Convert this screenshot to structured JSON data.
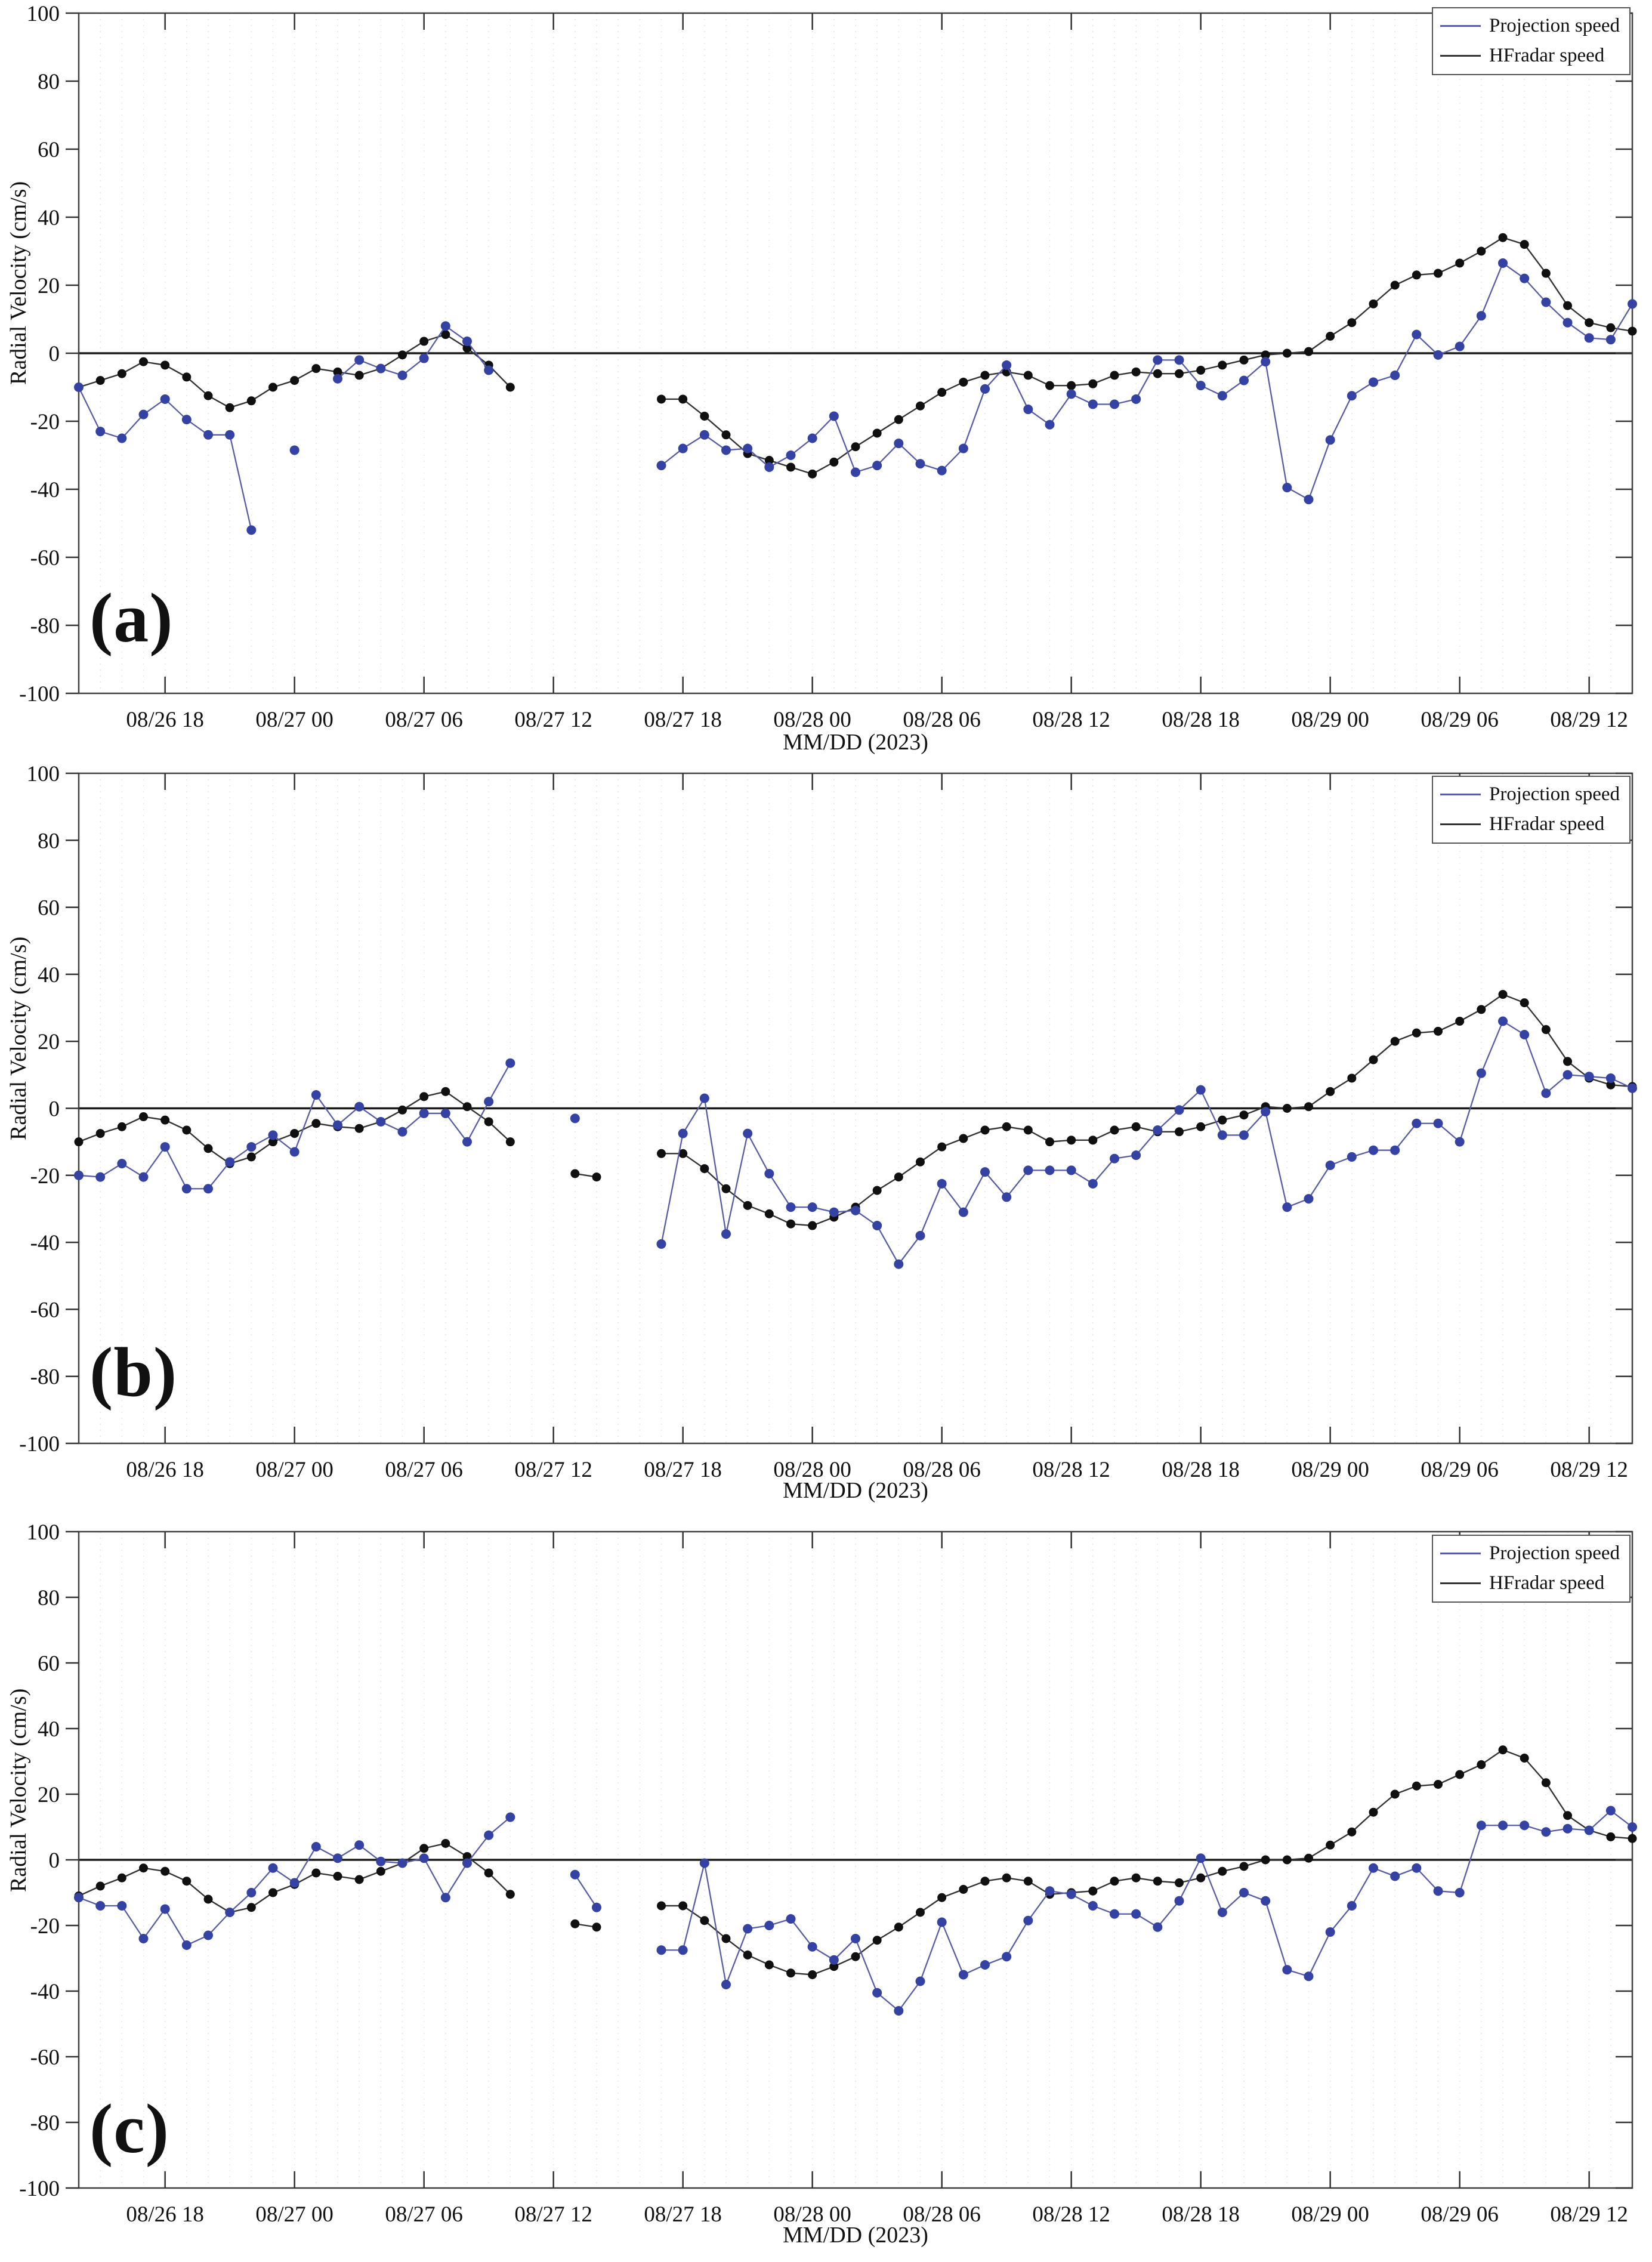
{
  "figure": {
    "xlabel": "MM/DD (2023)",
    "ylabel": "Radial Velocity (cm/s)"
  },
  "legend": {
    "items": [
      {
        "label": "Projection speed",
        "color": "#575ca6"
      },
      {
        "label": "HFradar speed",
        "color": "#333333"
      }
    ]
  },
  "colors": {
    "projection_line": "#575ca6",
    "projection_marker": "#3442a4",
    "hfradar_line": "#333333",
    "hfradar_marker": "#101010",
    "zero_line": "#1a1a1a",
    "grid": "#eae8da",
    "box": "#404040",
    "tick": "#333333",
    "text": "#111111"
  },
  "chart_data": [
    {
      "type": "line",
      "title": "(a)",
      "xlabel": "MM/DD (2023)",
      "ylabel": "Radial Velocity (cm/s)",
      "ylim": [
        -100,
        100
      ],
      "y_step": 20,
      "x_hours": 73,
      "x_start": "2023-08-26 14:00",
      "x_ticks": [
        {
          "i": 4,
          "label": "08/26 18"
        },
        {
          "i": 10,
          "label": "08/27 00"
        },
        {
          "i": 16,
          "label": "08/27 06"
        },
        {
          "i": 22,
          "label": "08/27 12"
        },
        {
          "i": 28,
          "label": "08/27 18"
        },
        {
          "i": 34,
          "label": "08/28 00"
        },
        {
          "i": 40,
          "label": "08/28 06"
        },
        {
          "i": 46,
          "label": "08/28 12"
        },
        {
          "i": 52,
          "label": "08/28 18"
        },
        {
          "i": 58,
          "label": "08/29 00"
        },
        {
          "i": 64,
          "label": "08/29 06"
        },
        {
          "i": 70,
          "label": "08/29 12"
        }
      ],
      "series": [
        {
          "name": "HFradar speed",
          "values": [
            -10,
            -8,
            -6,
            -2.5,
            -3.5,
            -7,
            -12.5,
            -16,
            -14,
            -10,
            -8,
            -4.5,
            -5.5,
            -6.5,
            -4.5,
            -0.5,
            3.5,
            5.5,
            1.5,
            -3.5,
            -10,
            null,
            null,
            null,
            null,
            null,
            null,
            -13.5,
            -13.5,
            -18.5,
            -24,
            -29.5,
            -31.5,
            -33.5,
            -35.5,
            -32,
            -27.5,
            -23.5,
            -19.5,
            -15.5,
            -11.5,
            -8.5,
            -6.5,
            -5.5,
            -6.5,
            -9.5,
            -9.5,
            -9,
            -6.5,
            -5.5,
            -6,
            -6,
            -5,
            -3.5,
            -2,
            -0.5,
            0,
            0.5,
            5,
            9,
            14.5,
            20,
            23,
            23.5,
            26.5,
            30,
            34,
            32,
            23.5,
            14,
            9,
            7.5,
            6.5
          ]
        },
        {
          "name": "Projection speed",
          "values": [
            -10,
            -23,
            -25,
            -18,
            -13.5,
            -19.5,
            -24,
            -24,
            -52,
            null,
            -28.5,
            null,
            -7.5,
            -2,
            -4.5,
            -6.5,
            -1.5,
            8,
            3.5,
            -5,
            null,
            null,
            null,
            null,
            null,
            null,
            null,
            -33,
            -28,
            -24,
            -28.5,
            -28,
            -33.5,
            -30,
            -25,
            -18.5,
            -35,
            -33,
            -26.5,
            -32.5,
            -34.5,
            -28,
            -10.5,
            -3.5,
            -16.5,
            -21,
            -12,
            -15,
            -15,
            -13.5,
            -2,
            -2,
            -9.5,
            -12.5,
            -8,
            -2.5,
            -39.5,
            -43,
            -25.5,
            -12.5,
            -8.5,
            -6.5,
            5.5,
            -0.5,
            2,
            11,
            26.5,
            22,
            15,
            9,
            4.5,
            4,
            14.5
          ]
        }
      ]
    },
    {
      "type": "line",
      "title": "(b)",
      "xlabel": "MM/DD (2023)",
      "ylabel": "Radial Velocity (cm/s)",
      "ylim": [
        -100,
        100
      ],
      "y_step": 20,
      "x_hours": 73,
      "x_start": "2023-08-26 14:00",
      "x_ticks": [
        {
          "i": 4,
          "label": "08/26 18"
        },
        {
          "i": 10,
          "label": "08/27 00"
        },
        {
          "i": 16,
          "label": "08/27 06"
        },
        {
          "i": 22,
          "label": "08/27 12"
        },
        {
          "i": 28,
          "label": "08/27 18"
        },
        {
          "i": 34,
          "label": "08/28 00"
        },
        {
          "i": 40,
          "label": "08/28 06"
        },
        {
          "i": 46,
          "label": "08/28 12"
        },
        {
          "i": 52,
          "label": "08/28 18"
        },
        {
          "i": 58,
          "label": "08/29 00"
        },
        {
          "i": 64,
          "label": "08/29 06"
        },
        {
          "i": 70,
          "label": "08/29 12"
        }
      ],
      "series": [
        {
          "name": "HFradar speed",
          "values": [
            -10,
            -7.5,
            -5.5,
            -2.5,
            -3.5,
            -6.5,
            -12,
            -16.5,
            -14.5,
            -10,
            -7.5,
            -4.5,
            -5.5,
            -6,
            -4,
            -0.5,
            3.5,
            5,
            0.5,
            -4,
            -10,
            null,
            null,
            -19.5,
            -20.5,
            null,
            null,
            -13.5,
            -13.5,
            -18,
            -24,
            -29,
            -31.5,
            -34.5,
            -35,
            -32.5,
            -29.5,
            -24.5,
            -20.5,
            -16,
            -11.5,
            -9,
            -6.5,
            -5.5,
            -6.5,
            -10,
            -9.5,
            -9.5,
            -6.5,
            -5.5,
            -7,
            -7,
            -5.5,
            -3.5,
            -2,
            0.5,
            0,
            0.5,
            5,
            9,
            14.5,
            20,
            22.5,
            23,
            26,
            29.5,
            34,
            31.5,
            23.5,
            14,
            9,
            7,
            6.5
          ]
        },
        {
          "name": "Projection speed",
          "values": [
            -20,
            -20.5,
            -16.5,
            -20.5,
            -11.5,
            -24,
            -24,
            -16,
            -11.5,
            -8,
            -13,
            4,
            -5,
            0.5,
            -4,
            -7,
            -1.5,
            -1.5,
            -10,
            2,
            13.5,
            null,
            null,
            -3,
            null,
            null,
            null,
            -40.5,
            -7.5,
            3,
            -37.5,
            -7.5,
            -19.5,
            -29.5,
            -29.5,
            -31,
            -30.5,
            -35,
            -46.5,
            -38,
            -22.5,
            -31,
            -19,
            -26.5,
            -18.5,
            -18.5,
            -18.5,
            -22.5,
            -15,
            -14,
            -6.5,
            -0.5,
            5.5,
            -8,
            -8,
            -1,
            -29.5,
            -27,
            -17,
            -14.5,
            -12.5,
            -12.5,
            -4.5,
            -4.5,
            -10,
            10.5,
            26,
            22,
            4.5,
            10,
            9.5,
            9,
            6
          ]
        }
      ]
    },
    {
      "type": "line",
      "title": "(c)",
      "xlabel": "MM/DD (2023)",
      "ylabel": "Radial Velocity (cm/s)",
      "ylim": [
        -100,
        100
      ],
      "y_step": 20,
      "x_hours": 73,
      "x_start": "2023-08-26 14:00",
      "x_ticks": [
        {
          "i": 4,
          "label": "08/26 18"
        },
        {
          "i": 10,
          "label": "08/27 00"
        },
        {
          "i": 16,
          "label": "08/27 06"
        },
        {
          "i": 22,
          "label": "08/27 12"
        },
        {
          "i": 28,
          "label": "08/27 18"
        },
        {
          "i": 34,
          "label": "08/28 00"
        },
        {
          "i": 40,
          "label": "08/28 06"
        },
        {
          "i": 46,
          "label": "08/28 12"
        },
        {
          "i": 52,
          "label": "08/28 18"
        },
        {
          "i": 58,
          "label": "08/29 00"
        },
        {
          "i": 64,
          "label": "08/29 06"
        },
        {
          "i": 70,
          "label": "08/29 12"
        }
      ],
      "series": [
        {
          "name": "HFradar speed",
          "values": [
            -11,
            -8,
            -5.5,
            -2.5,
            -3.5,
            -6.5,
            -12,
            -16,
            -14.5,
            -10,
            -7.5,
            -4,
            -5,
            -6,
            -3.5,
            -1,
            3.5,
            5,
            1,
            -4,
            -10.5,
            null,
            null,
            -19.5,
            -20.5,
            null,
            null,
            -14,
            -14,
            -18.5,
            -24,
            -29,
            -32,
            -34.5,
            -35,
            -32.5,
            -29.5,
            -24.5,
            -20.5,
            -16,
            -11.5,
            -9,
            -6.5,
            -5.5,
            -6.5,
            -10.5,
            -10,
            -9.5,
            -6.5,
            -5.5,
            -6.5,
            -7,
            -5.5,
            -3.5,
            -2,
            0,
            0,
            0.5,
            4.5,
            8.5,
            14.5,
            20,
            22.5,
            23,
            26,
            29,
            33.5,
            31,
            23.5,
            13.5,
            9,
            7,
            6.5
          ]
        },
        {
          "name": "Projection speed",
          "values": [
            -11.5,
            -14,
            -14,
            -24,
            -15,
            -26,
            -23,
            -16,
            -10,
            -2.5,
            -7,
            4,
            0.5,
            4.5,
            -0.5,
            -1,
            0.5,
            -11.5,
            -1,
            7.5,
            13,
            null,
            null,
            -4.5,
            -14.5,
            null,
            null,
            -27.5,
            -27.5,
            -1,
            -38,
            -21,
            -20,
            -18,
            -26.5,
            -30.5,
            -24,
            -40.5,
            -46,
            -37,
            -19,
            -35,
            -32,
            -29.5,
            -18.5,
            -9.5,
            -10.5,
            -14,
            -16.5,
            -16.5,
            -20.5,
            -12.5,
            0.5,
            -16,
            -10,
            -12.5,
            -33.5,
            -35.5,
            -22,
            -14,
            -2.5,
            -5,
            -2.5,
            -9.5,
            -10,
            10.5,
            10.5,
            10.5,
            8.5,
            9.5,
            9,
            15,
            10
          ]
        }
      ]
    }
  ]
}
